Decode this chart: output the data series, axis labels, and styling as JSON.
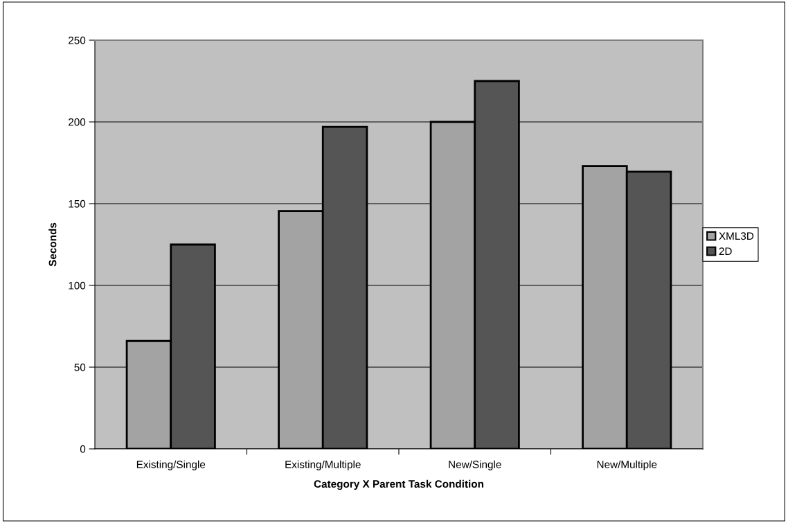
{
  "chart_data": {
    "type": "bar",
    "xlabel": "Category X Parent Task Condition",
    "ylabel": "Seconds",
    "categories": [
      "Existing/Single",
      "Existing/Multiple",
      "New/Single",
      "New/Multiple"
    ],
    "series": [
      {
        "name": "XML3D",
        "color": "#a3a3a3",
        "values": [
          66,
          145.5,
          200,
          173
        ]
      },
      {
        "name": "2D",
        "color": "#555555",
        "values": [
          125,
          197,
          225,
          169.5
        ]
      }
    ],
    "ylim": [
      0,
      250
    ],
    "yticks": [
      0,
      50,
      100,
      150,
      200,
      250
    ],
    "grid": "y",
    "legend": "right"
  }
}
